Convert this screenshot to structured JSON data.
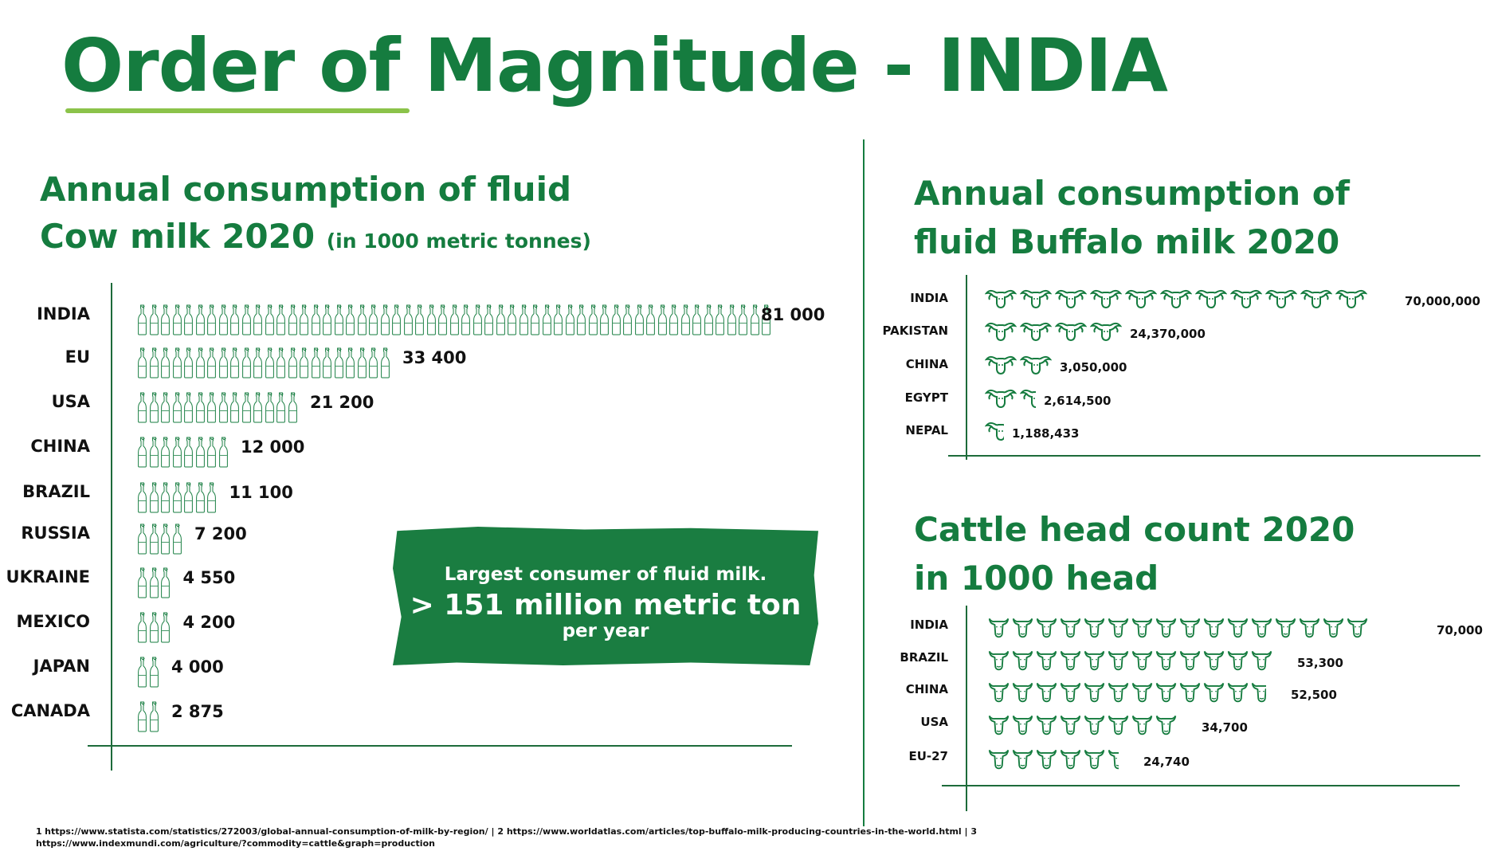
{
  "title": "Order of Magnitude - INDIA",
  "colors": {
    "brand": "#157c3f",
    "accent": "#8bc34a",
    "callout_bg": "#1a7d41"
  },
  "cow_section": {
    "title_line1": "Annual consumption of fluid",
    "title_line2": "Cow milk 2020",
    "subtitle": "(in 1000 metric tonnes)"
  },
  "buffalo_section": {
    "title_line1": "Annual consumption of",
    "title_line2": "fluid Buffalo milk 2020"
  },
  "cattle_section": {
    "title_line1": "Cattle head count 2020",
    "title_line2": "in  1000 head"
  },
  "callout": {
    "line1": "Largest consumer of fluid milk.",
    "line2": "> 151 million metric ton",
    "line3": "per year"
  },
  "footnote": {
    "n1": "1",
    "link1": "https://www.statista.com/statistics/272003/global-annual-consumption-of-milk-by-region/",
    "sep1": " | 2 ",
    "link2": "https://www.worldatlas.com/articles/top-buffalo-milk-producing-countries-in-the-world.html",
    "sep2": " | 3",
    "link3": "https://www.indexmundi.com/agriculture/?commodity=cattle&graph=production"
  },
  "chart_data": [
    {
      "type": "bar",
      "icon": "milk-bottle-icon",
      "title": "Annual consumption of fluid Cow milk 2020 (in 1000 metric tonnes)",
      "categories": [
        "INDIA",
        "EU",
        "USA",
        "CHINA",
        "BRAZIL",
        "RUSSIA",
        "UKRAINE",
        "MEXICO",
        "JAPAN",
        "CANADA"
      ],
      "values": [
        81000,
        33400,
        21200,
        12000,
        11100,
        7200,
        4550,
        4200,
        4000,
        2875
      ],
      "value_labels": [
        "81 000",
        "33 400",
        "21 200",
        "12 000",
        "11 100",
        "7 200",
        "4 550",
        "4 200",
        "4 000",
        "2 875"
      ],
      "icon_counts": [
        55,
        22,
        14,
        8,
        7,
        4,
        3,
        3,
        2,
        2
      ]
    },
    {
      "type": "bar",
      "icon": "buffalo-head-icon",
      "title": "Annual consumption of fluid Buffalo milk 2020",
      "categories": [
        "INDIA",
        "PAKISTAN",
        "CHINA",
        "EGYPT",
        "NEPAL"
      ],
      "values": [
        70000000,
        24370000,
        3050000,
        2614500,
        1188433
      ],
      "value_labels": [
        "70,000,000",
        "24,370,000",
        "3,050,000",
        "2,614,500",
        "1,188,433"
      ],
      "icon_counts": [
        11,
        4,
        2,
        1.5,
        0.6
      ]
    },
    {
      "type": "bar",
      "icon": "cow-head-icon",
      "title": "Cattle head count 2020 in 1000 head",
      "categories": [
        "INDIA",
        "BRAZIL",
        "CHINA",
        "USA",
        "EU-27"
      ],
      "values": [
        70000,
        53300,
        52500,
        34700,
        24740
      ],
      "value_labels": [
        "70,000",
        "53,300",
        "52,500",
        "34,700",
        "24,740"
      ],
      "icon_counts": [
        16,
        12,
        11.7,
        8,
        5.5
      ]
    }
  ]
}
